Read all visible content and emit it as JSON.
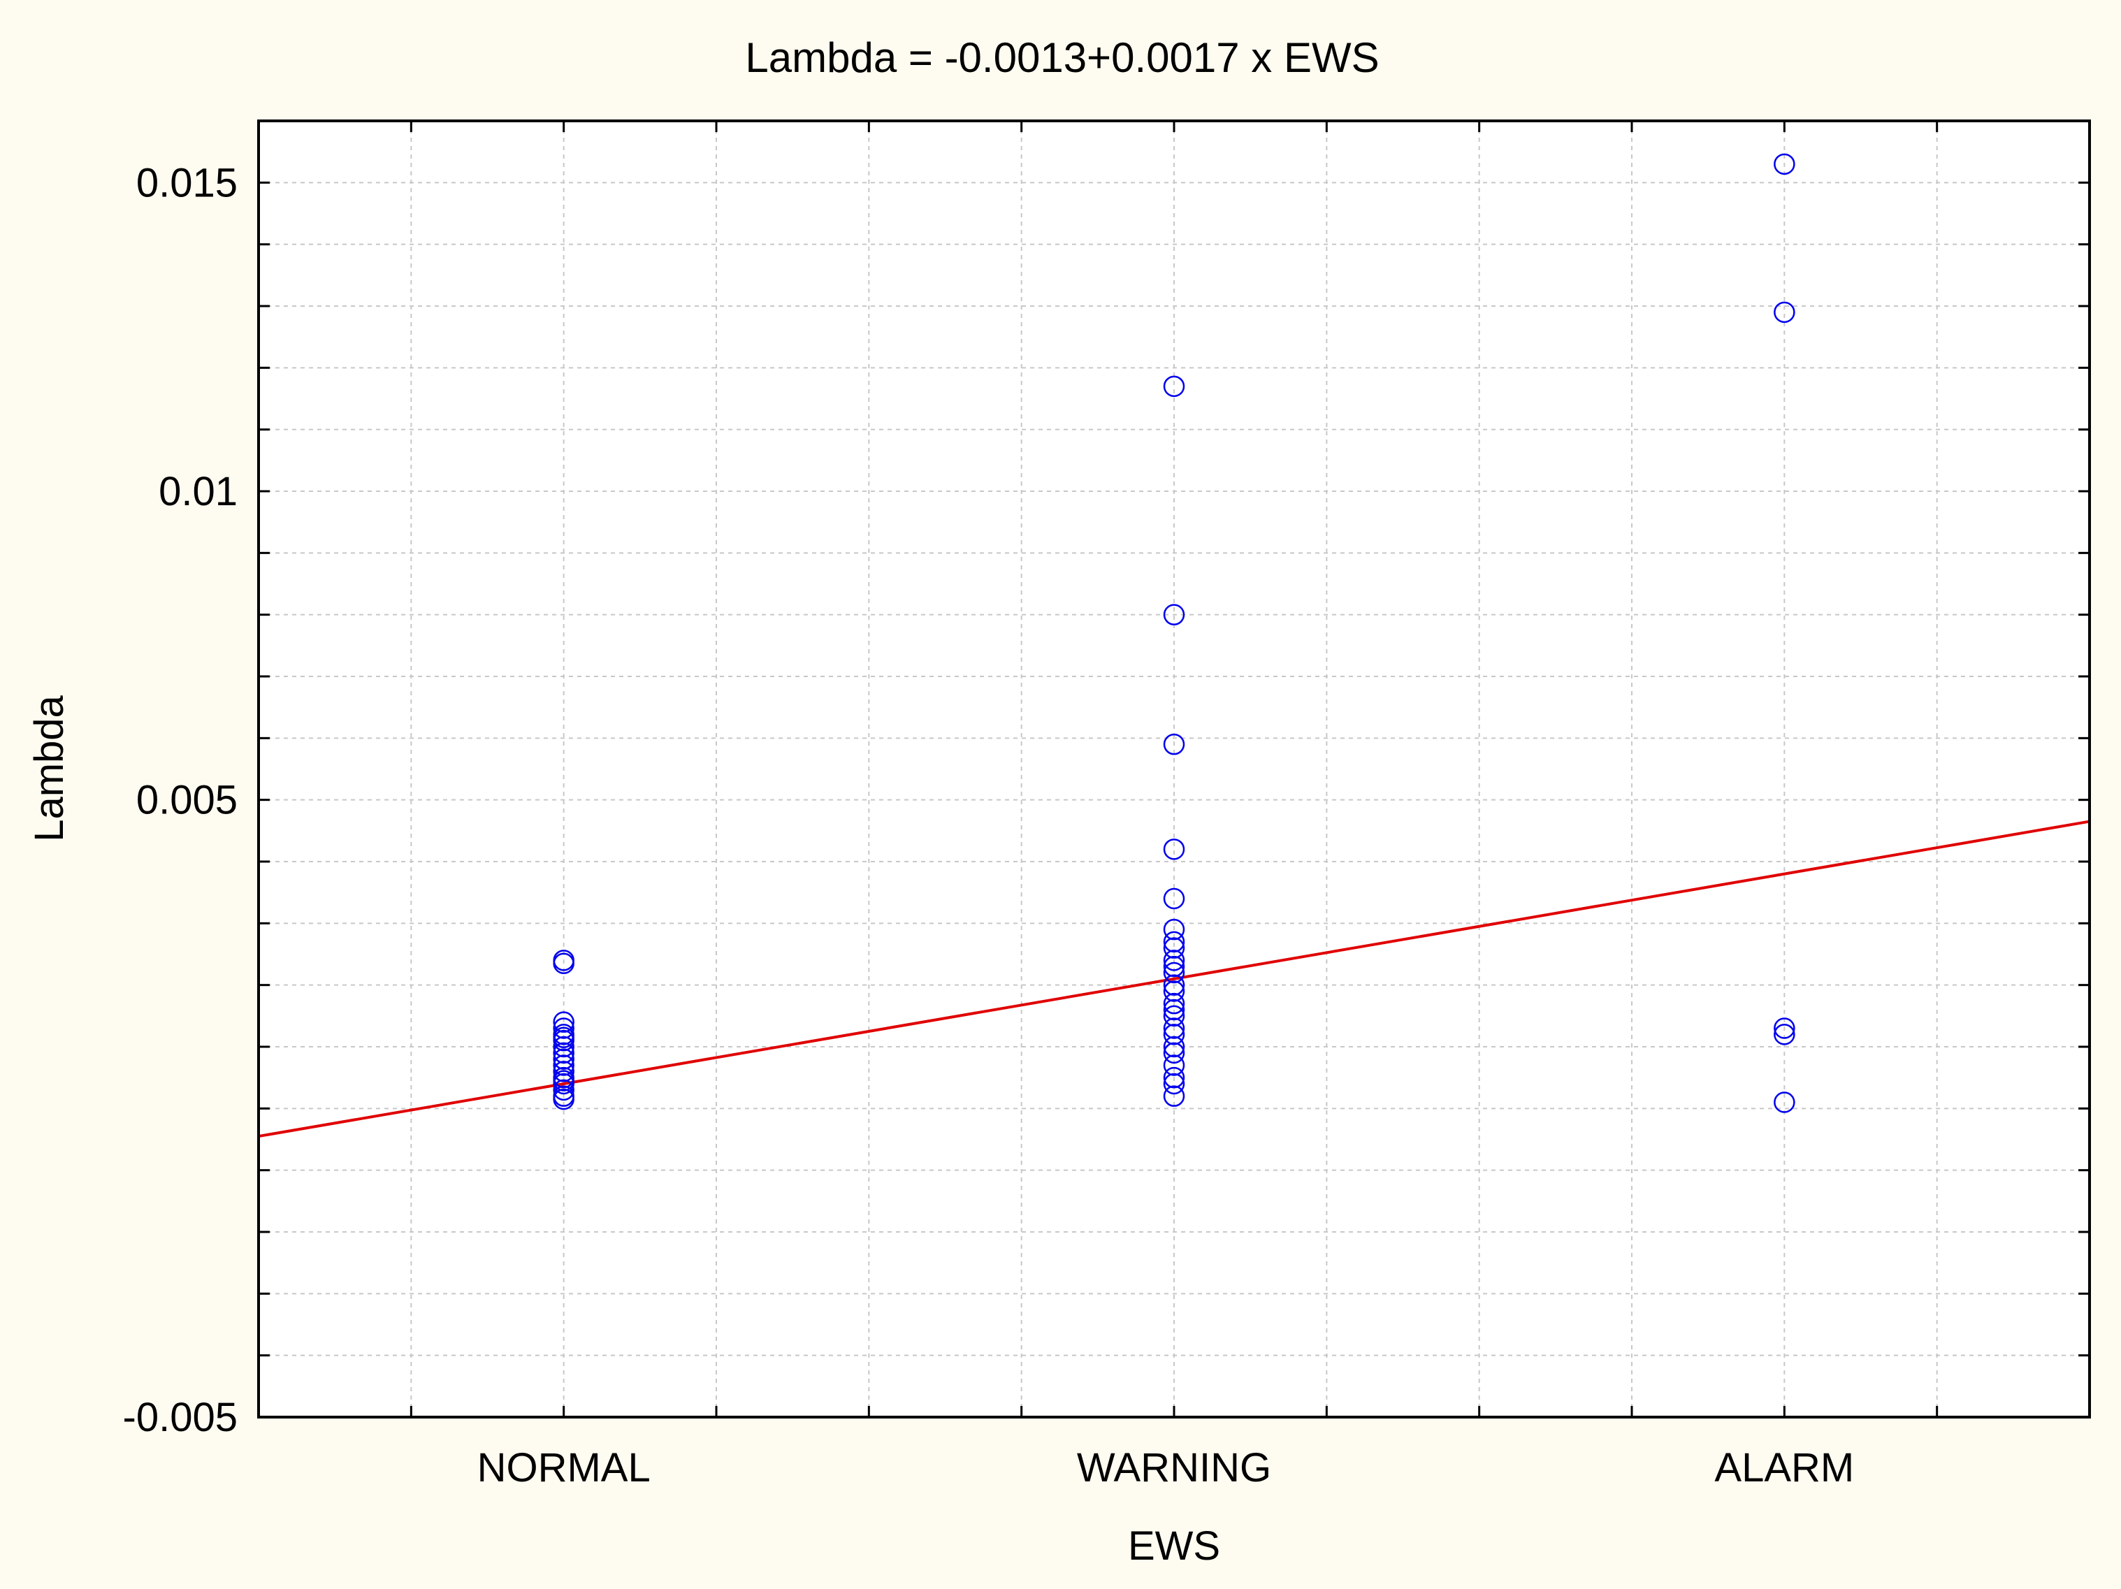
{
  "chart_data": {
    "type": "scatter",
    "title": "Lambda = -0.0013+0.0017 x EWS",
    "xlabel": "EWS",
    "ylabel": "Lambda",
    "categories": [
      "NORMAL",
      "WARNING",
      "ALARM"
    ],
    "x_range": [
      0.5,
      3.5
    ],
    "ylim": [
      -0.005,
      0.016
    ],
    "y_ticks": [
      {
        "value": -0.005,
        "label": "-0.005"
      },
      {
        "value": 0.005,
        "label": "0.005"
      },
      {
        "value": 0.01,
        "label": "0.01"
      },
      {
        "value": 0.015,
        "label": "0.015"
      }
    ],
    "grid": true,
    "series": [
      {
        "name": "Lambda",
        "marker": "circle",
        "color": "#0000ee",
        "points": [
          {
            "x": 1,
            "y": 0.0024
          },
          {
            "x": 1,
            "y": 0.00235
          },
          {
            "x": 1,
            "y": 0.0014
          },
          {
            "x": 1,
            "y": 0.0013
          },
          {
            "x": 1,
            "y": 0.0012
          },
          {
            "x": 1,
            "y": 0.00115
          },
          {
            "x": 1,
            "y": 0.0011
          },
          {
            "x": 1,
            "y": 0.001
          },
          {
            "x": 1,
            "y": 0.0009
          },
          {
            "x": 1,
            "y": 0.0008
          },
          {
            "x": 1,
            "y": 0.0007
          },
          {
            "x": 1,
            "y": 0.0006
          },
          {
            "x": 1,
            "y": 0.0005
          },
          {
            "x": 1,
            "y": 0.00045
          },
          {
            "x": 1,
            "y": 0.0004
          },
          {
            "x": 1,
            "y": 0.0003
          },
          {
            "x": 1,
            "y": 0.0002
          },
          {
            "x": 1,
            "y": 0.00015
          },
          {
            "x": 2,
            "y": 0.0117
          },
          {
            "x": 2,
            "y": 0.008
          },
          {
            "x": 2,
            "y": 0.0059
          },
          {
            "x": 2,
            "y": 0.0042
          },
          {
            "x": 2,
            "y": 0.0034
          },
          {
            "x": 2,
            "y": 0.0029
          },
          {
            "x": 2,
            "y": 0.0027
          },
          {
            "x": 2,
            "y": 0.0026
          },
          {
            "x": 2,
            "y": 0.0024
          },
          {
            "x": 2,
            "y": 0.0023
          },
          {
            "x": 2,
            "y": 0.0022
          },
          {
            "x": 2,
            "y": 0.002
          },
          {
            "x": 2,
            "y": 0.0019
          },
          {
            "x": 2,
            "y": 0.0017
          },
          {
            "x": 2,
            "y": 0.0016
          },
          {
            "x": 2,
            "y": 0.0015
          },
          {
            "x": 2,
            "y": 0.0013
          },
          {
            "x": 2,
            "y": 0.0012
          },
          {
            "x": 2,
            "y": 0.001
          },
          {
            "x": 2,
            "y": 0.0009
          },
          {
            "x": 2,
            "y": 0.0007
          },
          {
            "x": 2,
            "y": 0.0005
          },
          {
            "x": 2,
            "y": 0.0004
          },
          {
            "x": 2,
            "y": 0.0002
          },
          {
            "x": 3,
            "y": 0.0153
          },
          {
            "x": 3,
            "y": 0.0129
          },
          {
            "x": 3,
            "y": 0.0013
          },
          {
            "x": 3,
            "y": 0.0012
          },
          {
            "x": 3,
            "y": 0.0001
          }
        ]
      }
    ],
    "fit_line": {
      "color": "#e00000",
      "intercept": -0.0013,
      "slope": 0.0017
    }
  }
}
